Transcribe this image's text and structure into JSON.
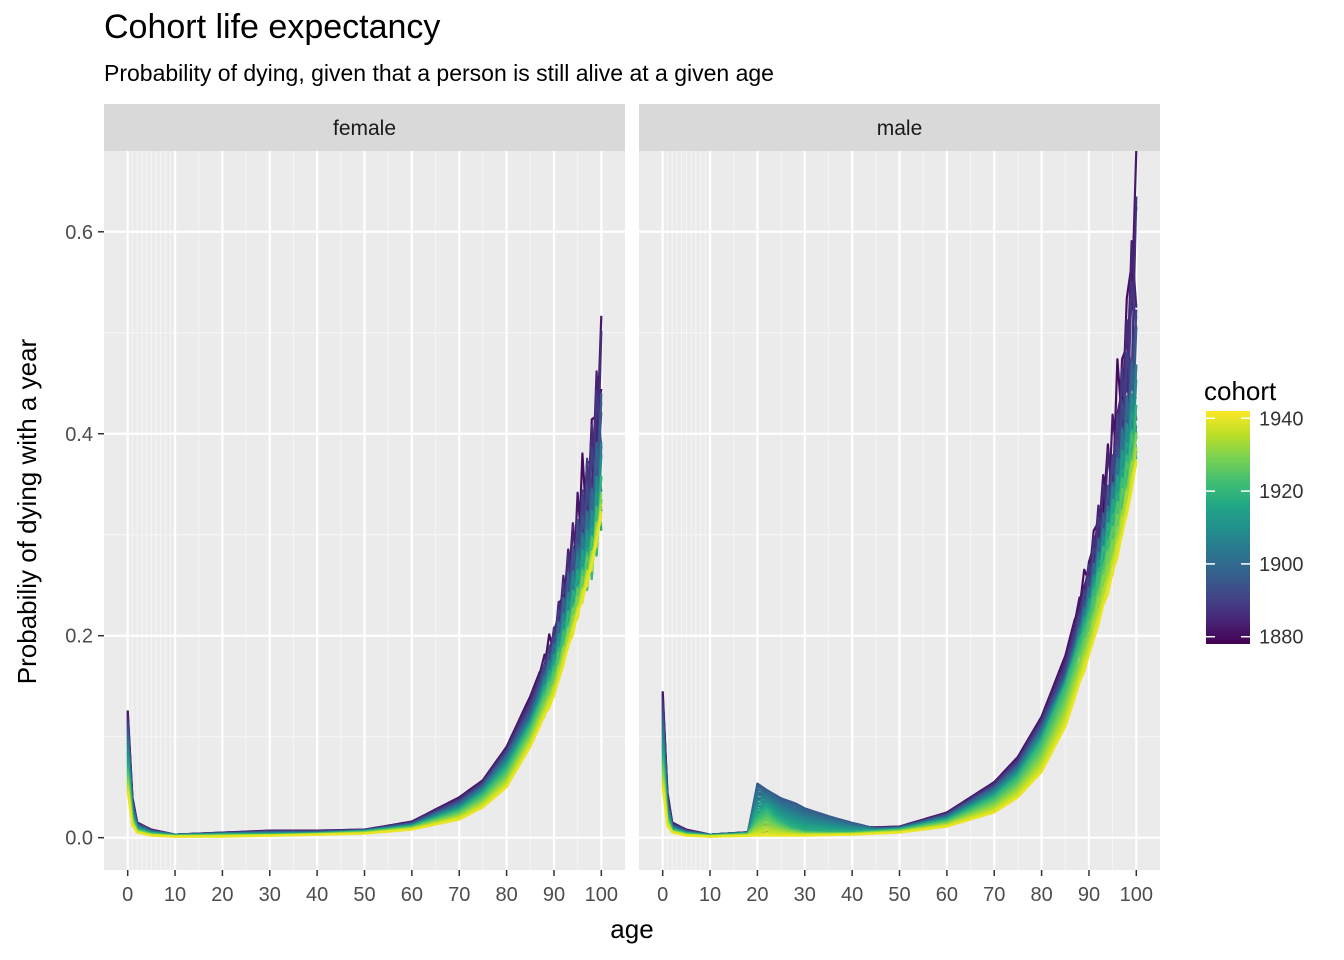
{
  "title": "Cohort life expectancy",
  "subtitle": "Probability of dying, given that a person is still alive at a given age",
  "chart_data": {
    "type": "line",
    "xlabel": "age",
    "ylabel": "Probabiliy of dying with a year",
    "xlim": [
      -5,
      105
    ],
    "ylim": [
      -0.032,
      0.68
    ],
    "x_ticks": [
      "0",
      "10",
      "20",
      "30",
      "40",
      "50",
      "60",
      "70",
      "80",
      "90",
      "100"
    ],
    "y_ticks": [
      "0.0",
      "0.2",
      "0.4",
      "0.6"
    ],
    "facets": [
      "female",
      "male"
    ],
    "legend": {
      "title": "cohort",
      "position": "right",
      "range": [
        1878,
        1942
      ],
      "labels": [
        "1880",
        "1900",
        "1920",
        "1940"
      ],
      "palette": [
        "#440154",
        "#482576",
        "#414487",
        "#35608d",
        "#2a788e",
        "#21908d",
        "#22a884",
        "#43bf71",
        "#7ad151",
        "#bddf26",
        "#fde725"
      ]
    },
    "approximate_series": {
      "female": [
        {
          "cohort": 1880,
          "x": [
            0,
            1,
            2,
            5,
            10,
            20,
            30,
            40,
            50,
            60,
            70,
            75,
            80,
            85,
            90,
            95,
            98,
            100
          ],
          "y": [
            0.126,
            0.04,
            0.015,
            0.008,
            0.003,
            0.005,
            0.007,
            0.007,
            0.008,
            0.016,
            0.04,
            0.057,
            0.09,
            0.14,
            0.2,
            0.3,
            0.38,
            0.47
          ]
        },
        {
          "cohort": 1900,
          "x": [
            0,
            1,
            2,
            5,
            10,
            20,
            30,
            40,
            50,
            60,
            70,
            75,
            80,
            85,
            90,
            95,
            98,
            100
          ],
          "y": [
            0.1,
            0.03,
            0.012,
            0.006,
            0.003,
            0.004,
            0.005,
            0.005,
            0.007,
            0.013,
            0.033,
            0.05,
            0.08,
            0.12,
            0.18,
            0.26,
            0.3,
            0.36
          ]
        },
        {
          "cohort": 1920,
          "x": [
            0,
            1,
            2,
            5,
            10,
            20,
            30,
            40,
            50,
            60,
            70,
            75,
            80,
            85,
            90,
            95,
            98,
            100
          ],
          "y": [
            0.07,
            0.02,
            0.008,
            0.004,
            0.002,
            0.003,
            0.003,
            0.004,
            0.006,
            0.011,
            0.027,
            0.043,
            0.068,
            0.11,
            0.165,
            0.24,
            0.28,
            0.33
          ]
        },
        {
          "cohort": 1940,
          "x": [
            0,
            1,
            2,
            5,
            10,
            20,
            30,
            40,
            50,
            60,
            70,
            75,
            80,
            85,
            90,
            95,
            98,
            100
          ],
          "y": [
            0.045,
            0.012,
            0.005,
            0.002,
            0.001,
            0.001,
            0.002,
            0.003,
            0.004,
            0.008,
            0.018,
            0.03,
            0.05,
            0.09,
            0.14,
            0.22,
            0.27,
            0.32
          ]
        }
      ],
      "male": [
        {
          "cohort": 1880,
          "x": [
            0,
            1,
            2,
            5,
            10,
            20,
            30,
            40,
            43,
            50,
            60,
            70,
            75,
            80,
            85,
            90,
            95,
            98,
            100
          ],
          "y": [
            0.145,
            0.045,
            0.015,
            0.008,
            0.003,
            0.006,
            0.008,
            0.01,
            0.01,
            0.011,
            0.025,
            0.055,
            0.08,
            0.12,
            0.18,
            0.27,
            0.38,
            0.5,
            0.65
          ]
        },
        {
          "cohort": 1895,
          "x": [
            0,
            1,
            2,
            5,
            10,
            18,
            20,
            22,
            25,
            28,
            30,
            35,
            40,
            45,
            50,
            60,
            70,
            75,
            80,
            85,
            90,
            95,
            98,
            100
          ],
          "y": [
            0.12,
            0.035,
            0.012,
            0.006,
            0.003,
            0.005,
            0.055,
            0.048,
            0.04,
            0.035,
            0.03,
            0.022,
            0.015,
            0.009,
            0.01,
            0.022,
            0.05,
            0.072,
            0.11,
            0.16,
            0.24,
            0.33,
            0.4,
            0.45
          ]
        },
        {
          "cohort": 1920,
          "x": [
            0,
            1,
            2,
            5,
            10,
            18,
            20,
            22,
            24,
            27,
            30,
            35,
            40,
            50,
            60,
            70,
            75,
            80,
            85,
            90,
            95,
            98,
            100
          ],
          "y": [
            0.08,
            0.02,
            0.008,
            0.004,
            0.002,
            0.004,
            0.02,
            0.027,
            0.018,
            0.01,
            0.006,
            0.005,
            0.005,
            0.008,
            0.017,
            0.04,
            0.06,
            0.095,
            0.15,
            0.22,
            0.31,
            0.36,
            0.4
          ]
        },
        {
          "cohort": 1940,
          "x": [
            0,
            1,
            2,
            5,
            10,
            20,
            30,
            40,
            50,
            60,
            70,
            75,
            80,
            85,
            90,
            95,
            98,
            100
          ],
          "y": [
            0.05,
            0.012,
            0.005,
            0.002,
            0.001,
            0.002,
            0.002,
            0.003,
            0.005,
            0.011,
            0.025,
            0.04,
            0.065,
            0.11,
            0.18,
            0.26,
            0.32,
            0.37
          ]
        }
      ]
    }
  }
}
